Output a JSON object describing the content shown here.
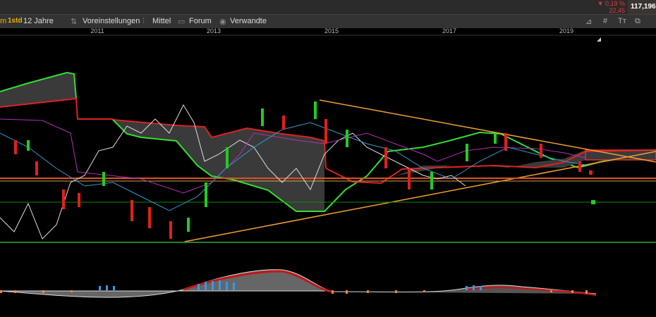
{
  "toolbar": {
    "items": [
      "m",
      "1std",
      "12 Jahre",
      "Voreinstellungen",
      "Mittel",
      "Forum",
      "Verwandte"
    ]
  },
  "quote": {
    "change": "▼ 0,19 %",
    "abs": "22,45",
    "price": "117,196"
  },
  "axis": {
    "years": [
      "2011",
      "2013",
      "2015",
      "2017",
      "2019"
    ]
  }
}
